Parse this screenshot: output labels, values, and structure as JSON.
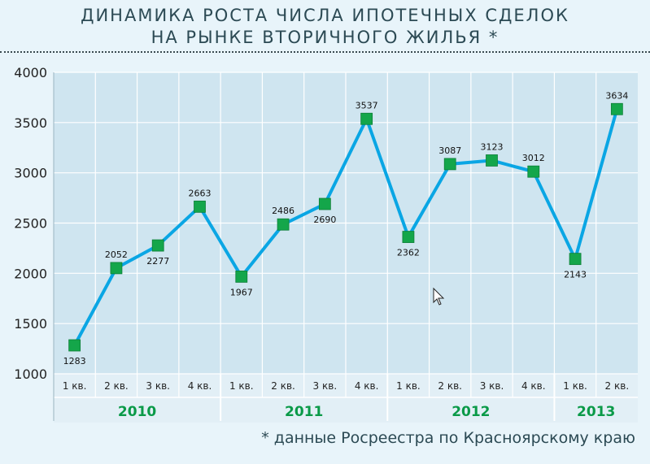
{
  "chart_data": {
    "type": "line",
    "title": [
      "ДИНАМИКА РОСТА ЧИСЛА ИПОТЕЧНЫХ СДЕЛОК",
      "НА РЫНКЕ ВТОРИЧНОГО ЖИЛЬЯ *"
    ],
    "footnote": "* данные Росреестра по Красноярскому краю",
    "categories": [
      "1 кв.",
      "2 кв.",
      "3 кв.",
      "4 кв.",
      "1 кв.",
      "2 кв.",
      "3 кв.",
      "4 кв.",
      "1 кв.",
      "2 кв.",
      "3 кв.",
      "4 кв.",
      "1 кв.",
      "2 кв."
    ],
    "years": [
      {
        "label": "2010",
        "quarters": 4
      },
      {
        "label": "2011",
        "quarters": 4
      },
      {
        "label": "2012",
        "quarters": 4
      },
      {
        "label": "2013",
        "quarters": 2
      }
    ],
    "values": [
      1283,
      2052,
      2277,
      2663,
      1967,
      2486,
      2690,
      3537,
      2362,
      3087,
      3123,
      3012,
      2143,
      3634
    ],
    "label_positions": [
      "below",
      "above",
      "below",
      "above",
      "below",
      "above",
      "below",
      "above",
      "below",
      "above",
      "above",
      "above",
      "below",
      "above"
    ],
    "ylim": [
      1000,
      4000
    ],
    "yticks": [
      1000,
      1500,
      2000,
      2500,
      3000,
      3500,
      4000
    ],
    "grid": true,
    "colors": {
      "line": "#0aa6e4",
      "marker": "#14a64a",
      "plot_bg": "#cfe5f0",
      "grid": "#ffffff",
      "year_text": "#0a9a48"
    }
  }
}
